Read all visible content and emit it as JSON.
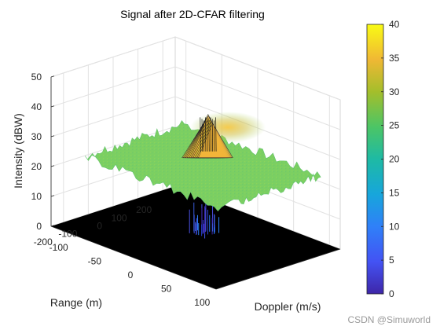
{
  "chart_data": {
    "type": "surface",
    "title": "Signal after 2D-CFAR filtering",
    "xlabel": "Range (m)",
    "ylabel": "Doppler (m/s)",
    "zlabel": "Intensity (dBW)",
    "x_ticks": [
      "200",
      "100",
      "0",
      "-100",
      "-200"
    ],
    "y_ticks": [
      "-100",
      "-50",
      "0",
      "50",
      "100"
    ],
    "z_ticks": [
      "0",
      "10",
      "20",
      "30",
      "40",
      "50"
    ],
    "xlim": [
      -250,
      250
    ],
    "ylim": [
      -115,
      115
    ],
    "zlim": [
      0,
      50
    ],
    "plateau_level": 25,
    "peak": {
      "range": 50,
      "doppler": 0,
      "intensity": 40
    },
    "colorbar": {
      "min": 0,
      "max": 40,
      "ticks": [
        "0",
        "5",
        "10",
        "15",
        "20",
        "25",
        "30",
        "35",
        "40"
      ],
      "colormap": "parula"
    },
    "grid": true
  },
  "watermark": "CSDN @Simuworld"
}
